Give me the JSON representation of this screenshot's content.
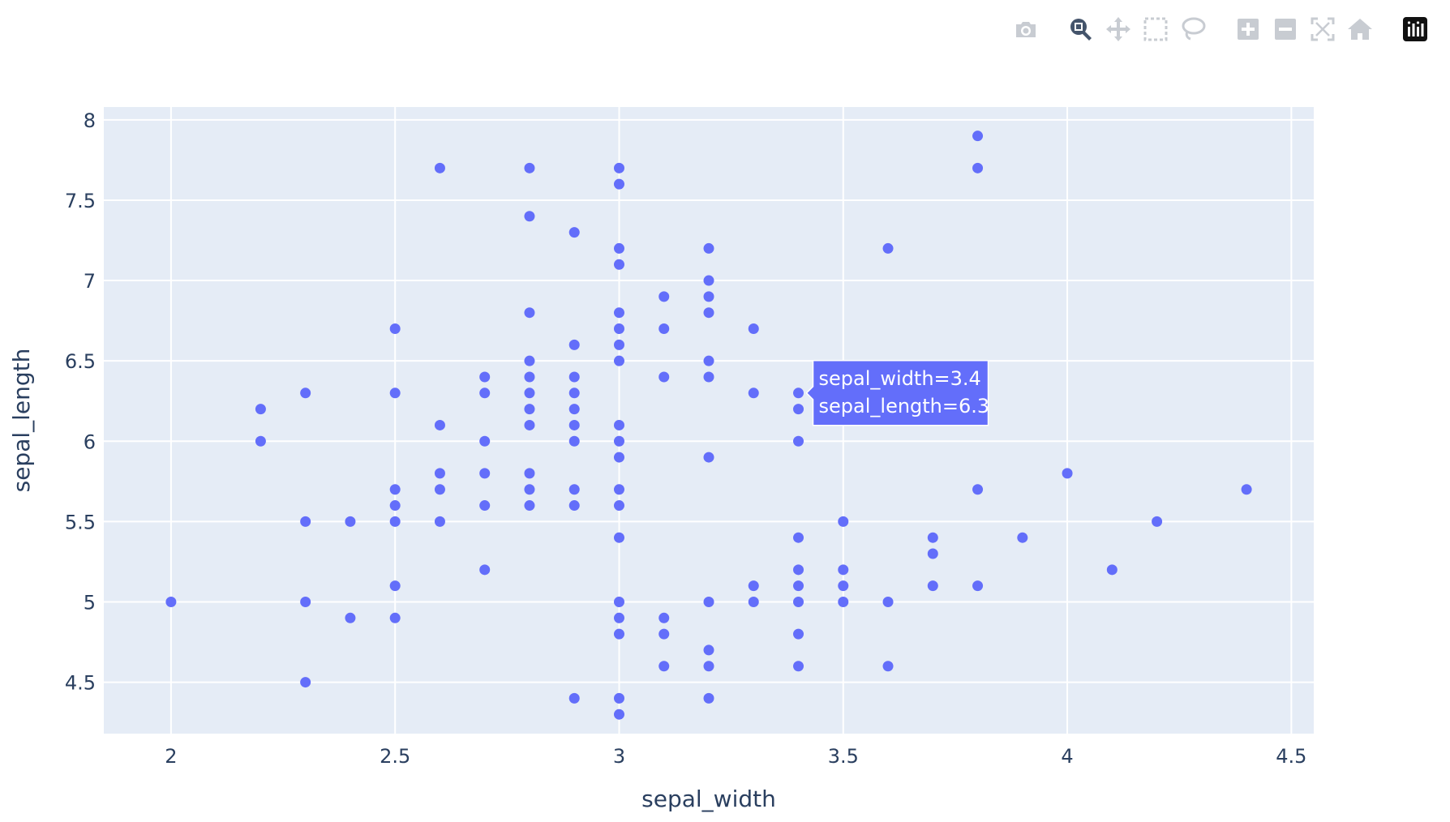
{
  "modebar": {
    "buttons": [
      {
        "icon": "camera-icon",
        "title": "Download plot as a png",
        "active": false
      },
      {
        "icon": "zoom-icon",
        "title": "Zoom",
        "active": true
      },
      {
        "icon": "pan-icon",
        "title": "Pan",
        "active": false
      },
      {
        "icon": "box-select-icon",
        "title": "Box Select",
        "active": false
      },
      {
        "icon": "lasso-select-icon",
        "title": "Lasso Select",
        "active": false
      },
      {
        "icon": "zoom-in-icon",
        "title": "Zoom in",
        "active": false
      },
      {
        "icon": "zoom-out-icon",
        "title": "Zoom out",
        "active": false
      },
      {
        "icon": "autoscale-icon",
        "title": "Autoscale",
        "active": false
      },
      {
        "icon": "reset-axes-icon",
        "title": "Reset axes",
        "active": false
      },
      {
        "icon": "plotly-logo-icon",
        "title": "Produced with Plotly",
        "active": false
      }
    ]
  },
  "colors": {
    "marker": "#636efa",
    "plot_bg": "#e5ecf6",
    "grid": "#ffffff",
    "text": "#2a3f5f",
    "hover_bg": "#636efa",
    "hover_text": "#ffffff"
  },
  "chart_data": {
    "type": "scatter",
    "title": "",
    "xlabel": "sepal_width",
    "ylabel": "sepal_length",
    "xlim": [
      1.85,
      4.55
    ],
    "ylim": [
      4.18,
      8.08
    ],
    "grid": true,
    "x_ticks": [
      2,
      2.5,
      3,
      3.5,
      4,
      4.5
    ],
    "x_tick_labels": [
      "2",
      "2.5",
      "3",
      "3.5",
      "4",
      "4.5"
    ],
    "y_ticks": [
      4.5,
      5,
      5.5,
      6,
      6.5,
      7,
      7.5,
      8
    ],
    "y_tick_labels": [
      "4.5",
      "5",
      "5.5",
      "6",
      "6.5",
      "7",
      "7.5",
      "8"
    ],
    "points": [
      [
        2.0,
        5.0
      ],
      [
        2.2,
        6.2
      ],
      [
        2.2,
        6.0
      ],
      [
        2.3,
        6.3
      ],
      [
        2.3,
        5.5
      ],
      [
        2.3,
        5.0
      ],
      [
        2.3,
        4.5
      ],
      [
        2.4,
        5.5
      ],
      [
        2.4,
        4.9
      ],
      [
        2.5,
        6.7
      ],
      [
        2.5,
        6.3
      ],
      [
        2.5,
        5.7
      ],
      [
        2.5,
        5.6
      ],
      [
        2.5,
        5.5
      ],
      [
        2.5,
        5.1
      ],
      [
        2.5,
        4.9
      ],
      [
        2.6,
        7.7
      ],
      [
        2.6,
        6.1
      ],
      [
        2.6,
        5.8
      ],
      [
        2.6,
        5.7
      ],
      [
        2.6,
        5.5
      ],
      [
        2.7,
        6.4
      ],
      [
        2.7,
        6.3
      ],
      [
        2.7,
        6.0
      ],
      [
        2.7,
        5.8
      ],
      [
        2.7,
        5.6
      ],
      [
        2.7,
        5.2
      ],
      [
        2.8,
        7.7
      ],
      [
        2.8,
        7.4
      ],
      [
        2.8,
        6.8
      ],
      [
        2.8,
        6.5
      ],
      [
        2.8,
        6.4
      ],
      [
        2.8,
        6.3
      ],
      [
        2.8,
        6.2
      ],
      [
        2.8,
        6.1
      ],
      [
        2.8,
        5.8
      ],
      [
        2.8,
        5.7
      ],
      [
        2.8,
        5.6
      ],
      [
        2.9,
        7.3
      ],
      [
        2.9,
        6.6
      ],
      [
        2.9,
        6.4
      ],
      [
        2.9,
        6.3
      ],
      [
        2.9,
        6.2
      ],
      [
        2.9,
        6.1
      ],
      [
        2.9,
        6.0
      ],
      [
        2.9,
        5.7
      ],
      [
        2.9,
        5.6
      ],
      [
        2.9,
        4.4
      ],
      [
        3.0,
        7.7
      ],
      [
        3.0,
        7.6
      ],
      [
        3.0,
        7.2
      ],
      [
        3.0,
        7.1
      ],
      [
        3.0,
        6.8
      ],
      [
        3.0,
        6.7
      ],
      [
        3.0,
        6.6
      ],
      [
        3.0,
        6.5
      ],
      [
        3.0,
        6.1
      ],
      [
        3.0,
        6.0
      ],
      [
        3.0,
        5.9
      ],
      [
        3.0,
        5.7
      ],
      [
        3.0,
        5.6
      ],
      [
        3.0,
        5.4
      ],
      [
        3.0,
        5.0
      ],
      [
        3.0,
        4.9
      ],
      [
        3.0,
        4.8
      ],
      [
        3.0,
        4.4
      ],
      [
        3.0,
        4.3
      ],
      [
        3.1,
        6.9
      ],
      [
        3.1,
        6.7
      ],
      [
        3.1,
        6.4
      ],
      [
        3.1,
        4.9
      ],
      [
        3.1,
        4.8
      ],
      [
        3.1,
        4.6
      ],
      [
        3.2,
        7.2
      ],
      [
        3.2,
        7.0
      ],
      [
        3.2,
        6.9
      ],
      [
        3.2,
        6.8
      ],
      [
        3.2,
        6.5
      ],
      [
        3.2,
        6.4
      ],
      [
        3.2,
        5.9
      ],
      [
        3.2,
        5.0
      ],
      [
        3.2,
        4.7
      ],
      [
        3.2,
        4.6
      ],
      [
        3.2,
        4.4
      ],
      [
        3.3,
        6.7
      ],
      [
        3.3,
        6.3
      ],
      [
        3.3,
        5.1
      ],
      [
        3.3,
        5.0
      ],
      [
        3.4,
        6.3
      ],
      [
        3.4,
        6.2
      ],
      [
        3.4,
        6.0
      ],
      [
        3.4,
        5.4
      ],
      [
        3.4,
        5.2
      ],
      [
        3.4,
        5.1
      ],
      [
        3.4,
        5.0
      ],
      [
        3.4,
        4.8
      ],
      [
        3.4,
        4.6
      ],
      [
        3.5,
        5.5
      ],
      [
        3.5,
        5.2
      ],
      [
        3.5,
        5.1
      ],
      [
        3.5,
        5.0
      ],
      [
        3.6,
        7.2
      ],
      [
        3.6,
        5.0
      ],
      [
        3.6,
        4.6
      ],
      [
        3.7,
        5.4
      ],
      [
        3.7,
        5.3
      ],
      [
        3.7,
        5.1
      ],
      [
        3.8,
        7.9
      ],
      [
        3.8,
        7.7
      ],
      [
        3.8,
        5.7
      ],
      [
        3.8,
        5.1
      ],
      [
        3.9,
        5.4
      ],
      [
        4.0,
        5.8
      ],
      [
        4.1,
        5.2
      ],
      [
        4.2,
        5.5
      ],
      [
        4.4,
        5.7
      ]
    ],
    "hover": {
      "x": 3.4,
      "y": 6.3,
      "line1": "sepal_width=3.4",
      "line2": "sepal_length=6.3"
    }
  }
}
